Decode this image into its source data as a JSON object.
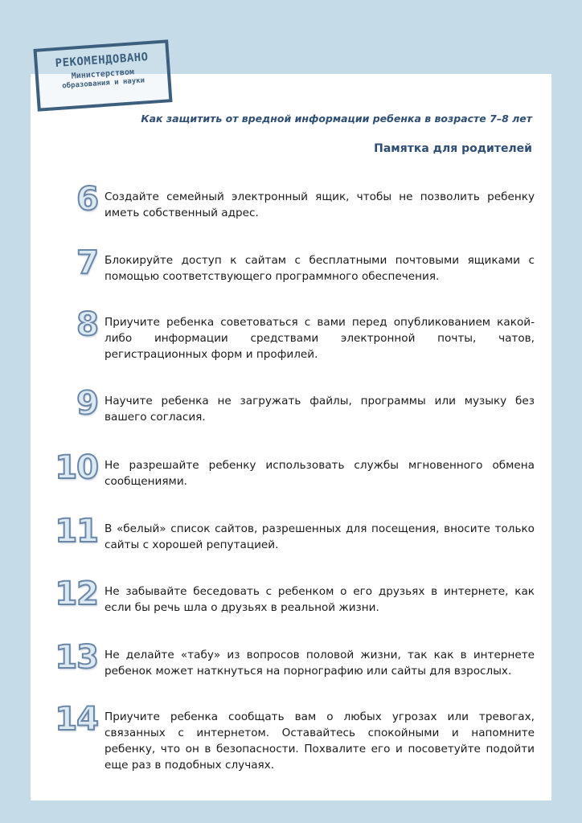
{
  "stamp": {
    "line1": "РЕКОМЕНДОВАНО",
    "line2": "Министерством",
    "line3": "образования и науки"
  },
  "subtitle": "Как защитить от вредной информации ребенка в возрасте 7–8 лет",
  "title": "Памятка для  родителей",
  "items": [
    {
      "number": "6",
      "text": "Создайте семейный электронный ящик, чтобы не позволить ребенку иметь собственный адрес."
    },
    {
      "number": "7",
      "text": "Блокируйте доступ к сайтам с бесплатными почтовыми ящиками с помощью соответствующего программного обеспечения."
    },
    {
      "number": "8",
      "text": "Приучите ребенка советоваться с вами перед опубликованием какой-либо информации средствами электронной почты, чатов, регистрационных форм и профилей."
    },
    {
      "number": "9",
      "text": "Научите ребенка не загружать файлы, программы или музыку без вашего согласия."
    },
    {
      "number": "10",
      "text": "Не разрешайте ребенку использовать службы мгновенного обмена сообщениями."
    },
    {
      "number": "11",
      "text": "В «белый» список сайтов, разрешенных для посещения, вносите только сайты с хорошей репутацией."
    },
    {
      "number": "12",
      "text": "Не забывайте беседовать с ребенком о его друзьях в интернете, как если бы речь шла о друзьях в реальной жизни."
    },
    {
      "number": "13",
      "text": "Не делайте «табу» из вопросов половой жизни, так как в интернете ребенок может наткнуться на порнографию или сайты для взрослых."
    },
    {
      "number": "14",
      "text": "Приучите ребенка сообщать вам о любых угрозах или тревогах, связанных с интернетом. Оставайтесь спокойными и напомните ребенку, что он в безопасности. Похвалите его и посоветуйте подойти еще раз в подобных случаях."
    }
  ]
}
